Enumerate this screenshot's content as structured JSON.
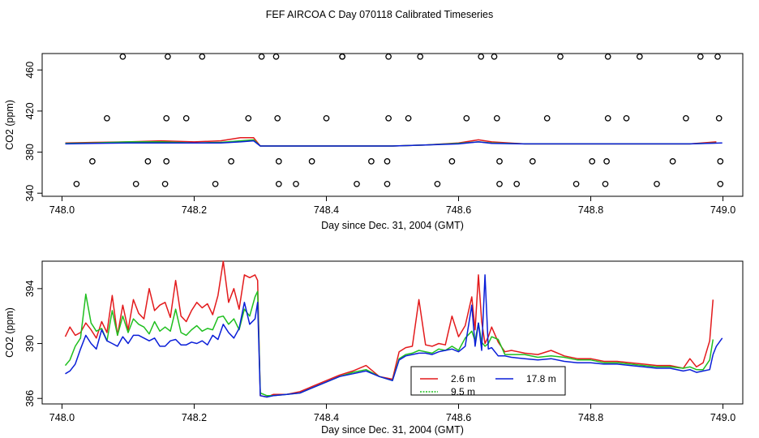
{
  "title": "FEF AIRCOA C  Day 070118  Calibrated Timeseries",
  "chart_data": [
    {
      "type": "scatter",
      "xlabel": "Day since Dec. 31, 2004 (GMT)",
      "ylabel": "CO2 (ppm)",
      "xlim": [
        747.97,
        749.03
      ],
      "ylim": [
        337,
        476
      ],
      "xticks": [
        "748.0",
        "748.2",
        "748.4",
        "748.6",
        "748.8",
        "749.0"
      ],
      "yticks": [
        "340",
        "380",
        "420",
        "460"
      ],
      "tick_values_x": [
        748.0,
        748.2,
        748.4,
        748.6,
        748.8,
        749.0
      ],
      "tick_values_y": [
        340,
        380,
        420,
        460
      ],
      "reference_points": [
        [
          748.022,
          349
        ],
        [
          748.092,
          473
        ],
        [
          748.112,
          349
        ],
        [
          748.156,
          349
        ],
        [
          748.16,
          473
        ],
        [
          748.212,
          473
        ],
        [
          748.232,
          349
        ],
        [
          748.302,
          473
        ],
        [
          748.324,
          473
        ],
        [
          748.328,
          349
        ],
        [
          748.354,
          349
        ],
        [
          748.424,
          473
        ],
        [
          748.424,
          473
        ],
        [
          748.446,
          349
        ],
        [
          748.492,
          349
        ],
        [
          748.494,
          473
        ],
        [
          748.542,
          473
        ],
        [
          748.568,
          349
        ],
        [
          748.634,
          473
        ],
        [
          748.654,
          473
        ],
        [
          748.662,
          349
        ],
        [
          748.688,
          349
        ],
        [
          748.754,
          473
        ],
        [
          748.778,
          349
        ],
        [
          748.826,
          473
        ],
        [
          748.822,
          349
        ],
        [
          748.874,
          473
        ],
        [
          748.9,
          349
        ],
        [
          748.966,
          473
        ],
        [
          748.992,
          473
        ],
        [
          748.996,
          349
        ],
        [
          748.068,
          413
        ],
        [
          748.158,
          413
        ],
        [
          748.188,
          413
        ],
        [
          748.282,
          413
        ],
        [
          748.326,
          413
        ],
        [
          748.4,
          413
        ],
        [
          748.494,
          413
        ],
        [
          748.524,
          413
        ],
        [
          748.612,
          413
        ],
        [
          748.658,
          413
        ],
        [
          748.734,
          413
        ],
        [
          748.826,
          413
        ],
        [
          748.854,
          413
        ],
        [
          748.944,
          413
        ],
        [
          748.994,
          413
        ],
        [
          748.046,
          371
        ],
        [
          748.13,
          371
        ],
        [
          748.158,
          371
        ],
        [
          748.256,
          371
        ],
        [
          748.328,
          371
        ],
        [
          748.378,
          371
        ],
        [
          748.468,
          371
        ],
        [
          748.492,
          371
        ],
        [
          748.59,
          371
        ],
        [
          748.662,
          371
        ],
        [
          748.712,
          371
        ],
        [
          748.802,
          371
        ],
        [
          748.824,
          371
        ],
        [
          748.924,
          371
        ],
        [
          748.996,
          371
        ]
      ],
      "series": [
        {
          "name": "2.6 m",
          "color": "#e31a1c",
          "x": [
            748.005,
            748.05,
            748.1,
            748.15,
            748.2,
            748.24,
            748.27,
            748.29,
            748.3,
            748.35,
            748.4,
            748.45,
            748.5,
            748.55,
            748.6,
            748.63,
            748.65,
            748.7,
            748.75,
            748.8,
            748.85,
            748.9,
            748.95,
            748.99
          ],
          "values": [
            389,
            389.5,
            390,
            391,
            390,
            391,
            394,
            394,
            386,
            386,
            386,
            386,
            386,
            387,
            389,
            392,
            390,
            388,
            388,
            388,
            388,
            388,
            388,
            390
          ]
        },
        {
          "name": "9.5 m",
          "color": "#1fbf1f",
          "x": [
            748.005,
            748.05,
            748.1,
            748.15,
            748.2,
            748.24,
            748.27,
            748.29,
            748.3,
            748.35,
            748.4,
            748.45,
            748.5,
            748.55,
            748.6,
            748.63,
            748.65,
            748.7,
            748.75,
            748.8,
            748.85,
            748.9,
            748.95,
            748.99
          ],
          "values": [
            388.5,
            389,
            390,
            390,
            389,
            389.5,
            391,
            392,
            386,
            386,
            386,
            386,
            386,
            387,
            388.5,
            390,
            389,
            388,
            388,
            388,
            388,
            388,
            388,
            389
          ]
        },
        {
          "name": "17.8 m",
          "color": "#0a1ed8",
          "x": [
            748.005,
            748.05,
            748.1,
            748.15,
            748.2,
            748.24,
            748.27,
            748.29,
            748.3,
            748.35,
            748.4,
            748.45,
            748.5,
            748.55,
            748.6,
            748.63,
            748.65,
            748.7,
            748.75,
            748.8,
            748.85,
            748.9,
            748.95,
            748.999
          ],
          "values": [
            388,
            388.5,
            389,
            389,
            389,
            389,
            390,
            391,
            386,
            386,
            386,
            386,
            386,
            387,
            388,
            390,
            388.5,
            388,
            388,
            388,
            388,
            388,
            388,
            389
          ]
        }
      ]
    },
    {
      "type": "line",
      "xlabel": "Day since Dec. 31, 2004 (GMT)",
      "ylabel": "CO2 (ppm)",
      "xlim": [
        747.97,
        749.03
      ],
      "ylim": [
        385.6,
        396.0
      ],
      "xticks": [
        "748.0",
        "748.2",
        "748.4",
        "748.6",
        "748.8",
        "749.0"
      ],
      "yticks": [
        "386",
        "390",
        "394"
      ],
      "tick_values_x": [
        748.0,
        748.2,
        748.4,
        748.6,
        748.8,
        749.0
      ],
      "tick_values_y": [
        386,
        390,
        394
      ],
      "legend": {
        "placement": "bottom-center"
      },
      "series": [
        {
          "name": "2.6 m",
          "color": "#e31a1c",
          "x": [
            748.005,
            748.012,
            748.02,
            748.028,
            748.036,
            748.044,
            748.052,
            748.06,
            748.068,
            748.076,
            748.084,
            748.092,
            748.1,
            748.108,
            748.116,
            748.124,
            748.132,
            748.14,
            748.148,
            748.156,
            748.164,
            748.172,
            748.18,
            748.188,
            748.196,
            748.204,
            748.212,
            748.22,
            748.228,
            748.236,
            748.244,
            748.252,
            748.26,
            748.268,
            748.276,
            748.284,
            748.292,
            748.296,
            748.3,
            748.31,
            748.32,
            748.34,
            748.36,
            748.38,
            748.4,
            748.42,
            748.44,
            748.46,
            748.48,
            748.5,
            748.51,
            748.52,
            748.53,
            748.54,
            748.55,
            748.56,
            748.57,
            748.58,
            748.59,
            748.6,
            748.61,
            748.62,
            748.625,
            748.63,
            748.635,
            748.64,
            748.645,
            748.65,
            748.66,
            748.67,
            748.68,
            748.7,
            748.72,
            748.74,
            748.76,
            748.78,
            748.8,
            748.82,
            748.84,
            748.86,
            748.88,
            748.9,
            748.92,
            748.94,
            748.95,
            748.96,
            748.97,
            748.98,
            748.985
          ],
          "values": [
            390.5,
            391.2,
            390.6,
            390.8,
            391.5,
            391,
            390.4,
            391.6,
            390.8,
            393.5,
            390.6,
            392.8,
            391,
            393.2,
            392.2,
            391.8,
            394,
            392.4,
            392.8,
            393,
            391.9,
            394.6,
            392,
            391.6,
            392.4,
            393,
            392.6,
            392.9,
            392.1,
            393.5,
            396,
            393,
            394,
            392.5,
            395,
            394.8,
            395,
            394.6,
            386.2,
            386.1,
            386.3,
            386.3,
            386.5,
            386.9,
            387.3,
            387.7,
            388,
            388.4,
            387.6,
            387.4,
            389.4,
            389.7,
            389.8,
            393.2,
            389.9,
            389.8,
            390,
            389.9,
            392,
            390.5,
            391.3,
            393.4,
            391,
            395,
            391.6,
            390,
            390.5,
            391.2,
            390.1,
            389.4,
            389.5,
            389.3,
            389.2,
            389.5,
            389.1,
            388.9,
            388.9,
            388.7,
            388.7,
            388.6,
            388.5,
            388.4,
            388.4,
            388.2,
            388.9,
            388.3,
            388.6,
            390.2,
            393.2
          ]
        },
        {
          "name": "9.5 m",
          "color": "#1fbf1f",
          "x": [
            748.005,
            748.012,
            748.02,
            748.028,
            748.036,
            748.044,
            748.052,
            748.06,
            748.068,
            748.076,
            748.084,
            748.092,
            748.1,
            748.108,
            748.116,
            748.124,
            748.132,
            748.14,
            748.148,
            748.156,
            748.164,
            748.172,
            748.18,
            748.188,
            748.196,
            748.204,
            748.212,
            748.22,
            748.228,
            748.236,
            748.244,
            748.252,
            748.26,
            748.268,
            748.276,
            748.284,
            748.292,
            748.296,
            748.3,
            748.31,
            748.32,
            748.34,
            748.36,
            748.38,
            748.4,
            748.42,
            748.44,
            748.46,
            748.48,
            748.5,
            748.51,
            748.52,
            748.53,
            748.54,
            748.55,
            748.56,
            748.57,
            748.58,
            748.59,
            748.6,
            748.61,
            748.62,
            748.625,
            748.63,
            748.635,
            748.64,
            748.645,
            748.65,
            748.66,
            748.67,
            748.68,
            748.7,
            748.72,
            748.74,
            748.76,
            748.78,
            748.8,
            748.82,
            748.84,
            748.86,
            748.88,
            748.9,
            748.92,
            748.94,
            748.95,
            748.96,
            748.97,
            748.98,
            748.985
          ],
          "values": [
            388.4,
            388.8,
            389.8,
            390.4,
            393.6,
            391.5,
            390.9,
            391.1,
            390.2,
            392.4,
            390.6,
            392,
            390.8,
            391.8,
            391.4,
            391.2,
            390.7,
            391.6,
            390.9,
            391.2,
            390.9,
            392.5,
            390.8,
            390.6,
            391,
            391.3,
            390.9,
            391.1,
            391,
            391.9,
            392,
            391.4,
            391.8,
            391,
            392.5,
            392,
            393.4,
            393.8,
            386.4,
            386.2,
            386.2,
            386.3,
            386.4,
            386.8,
            387.2,
            387.6,
            387.9,
            388.1,
            387.6,
            387.3,
            388.9,
            389.2,
            389.3,
            389.5,
            389.4,
            389.3,
            389.6,
            389.5,
            389.8,
            389.5,
            390.4,
            390.9,
            390.2,
            391.5,
            390.1,
            389.8,
            390,
            390.5,
            390.3,
            389.2,
            389.2,
            389.2,
            389,
            389.1,
            389,
            388.8,
            388.8,
            388.6,
            388.6,
            388.5,
            388.4,
            388.3,
            388.3,
            388.2,
            388.3,
            388.1,
            388.1,
            388.8,
            390.3
          ]
        },
        {
          "name": "17.8 m",
          "color": "#0a1ed8",
          "x": [
            748.005,
            748.012,
            748.02,
            748.028,
            748.036,
            748.044,
            748.052,
            748.06,
            748.068,
            748.076,
            748.084,
            748.092,
            748.1,
            748.108,
            748.116,
            748.124,
            748.132,
            748.14,
            748.148,
            748.156,
            748.164,
            748.172,
            748.18,
            748.188,
            748.196,
            748.204,
            748.212,
            748.22,
            748.228,
            748.236,
            748.244,
            748.252,
            748.26,
            748.268,
            748.276,
            748.284,
            748.292,
            748.296,
            748.3,
            748.31,
            748.32,
            748.34,
            748.36,
            748.38,
            748.4,
            748.42,
            748.44,
            748.46,
            748.48,
            748.5,
            748.51,
            748.52,
            748.53,
            748.54,
            748.55,
            748.56,
            748.57,
            748.58,
            748.59,
            748.6,
            748.61,
            748.62,
            748.625,
            748.63,
            748.635,
            748.64,
            748.645,
            748.65,
            748.66,
            748.67,
            748.68,
            748.7,
            748.72,
            748.74,
            748.76,
            748.78,
            748.8,
            748.82,
            748.84,
            748.86,
            748.88,
            748.9,
            748.92,
            748.94,
            748.95,
            748.96,
            748.97,
            748.98,
            748.985,
            748.99,
            748.999
          ],
          "values": [
            387.8,
            388,
            388.5,
            389.6,
            390.6,
            390,
            389.6,
            391,
            390.2,
            390,
            389.8,
            390.5,
            390,
            390.6,
            390.6,
            390.4,
            390.2,
            390.4,
            389.8,
            389.8,
            390.2,
            390.3,
            389.9,
            389.9,
            390.1,
            390,
            390.2,
            389.9,
            390.6,
            390.3,
            391.4,
            390.8,
            390.4,
            391.1,
            393,
            391.4,
            391.8,
            393,
            386.2,
            386.1,
            386.2,
            386.3,
            386.4,
            386.8,
            387.2,
            387.6,
            387.8,
            388,
            387.6,
            387.3,
            388.8,
            389.1,
            389.2,
            389.3,
            389.3,
            389.2,
            389.4,
            389.5,
            389.6,
            389.4,
            389.8,
            392.8,
            389.8,
            391.5,
            389.5,
            395,
            389.6,
            389.7,
            389.1,
            389.1,
            389,
            388.9,
            388.8,
            388.9,
            388.7,
            388.6,
            388.6,
            388.5,
            388.5,
            388.4,
            388.3,
            388.2,
            388.2,
            388,
            388.1,
            387.9,
            388.0,
            388.1,
            389.2,
            389.8,
            390.4
          ]
        }
      ]
    }
  ]
}
